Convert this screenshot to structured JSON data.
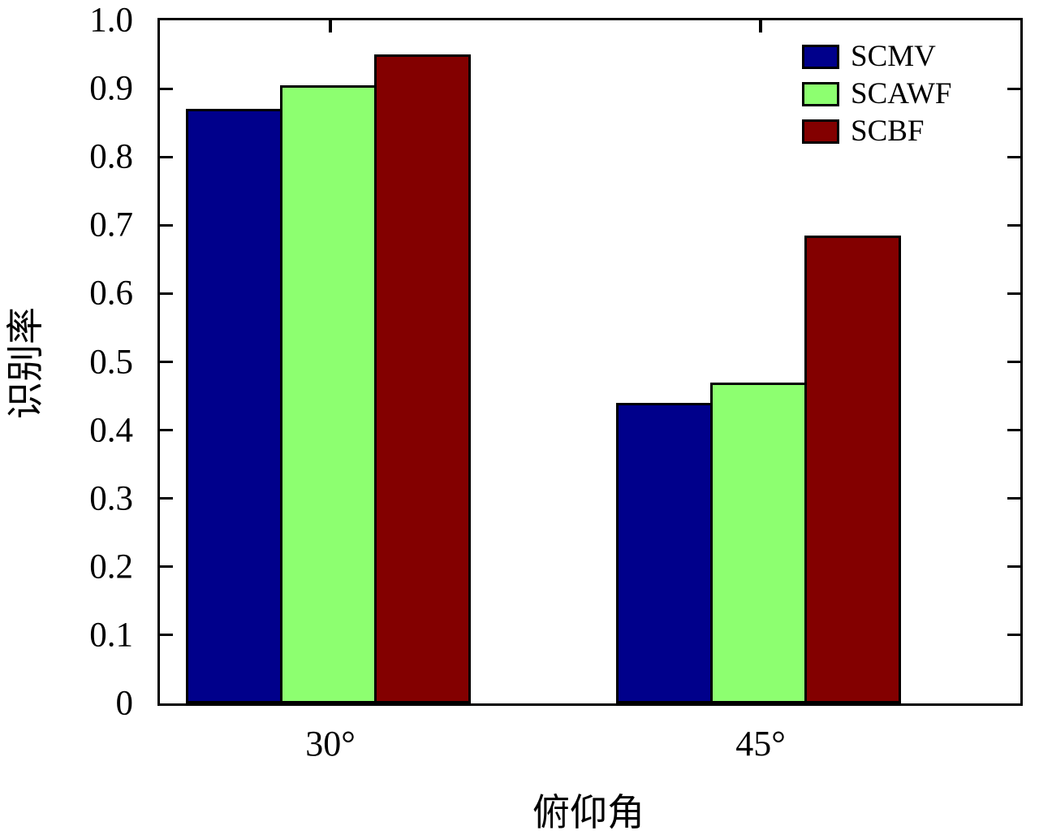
{
  "chart_data": {
    "type": "bar",
    "title": "",
    "xlabel": "俯仰角",
    "ylabel": "识别率",
    "categories": [
      "30°",
      "45°"
    ],
    "series": [
      {
        "name": "SCMV",
        "color": "#00008B",
        "values": [
          0.87,
          0.44
        ]
      },
      {
        "name": "SCAWF",
        "color": "#8DFF70",
        "values": [
          0.905,
          0.47
        ]
      },
      {
        "name": "SCBF",
        "color": "#830000",
        "values": [
          0.95,
          0.685
        ]
      }
    ],
    "ylim": [
      0,
      1.0
    ],
    "yticks": [
      0,
      0.1,
      0.2,
      0.3,
      0.4,
      0.5,
      0.6,
      0.7,
      0.8,
      0.9,
      1.0
    ],
    "ytick_labels": [
      "0",
      "0.1",
      "0.2",
      "0.3",
      "0.4",
      "0.5",
      "0.6",
      "0.7",
      "0.8",
      "0.9",
      "1.0"
    ],
    "grid": false,
    "legend_position": "top-right",
    "bar_edge_color": "#000000",
    "axis_color": "#000000"
  }
}
